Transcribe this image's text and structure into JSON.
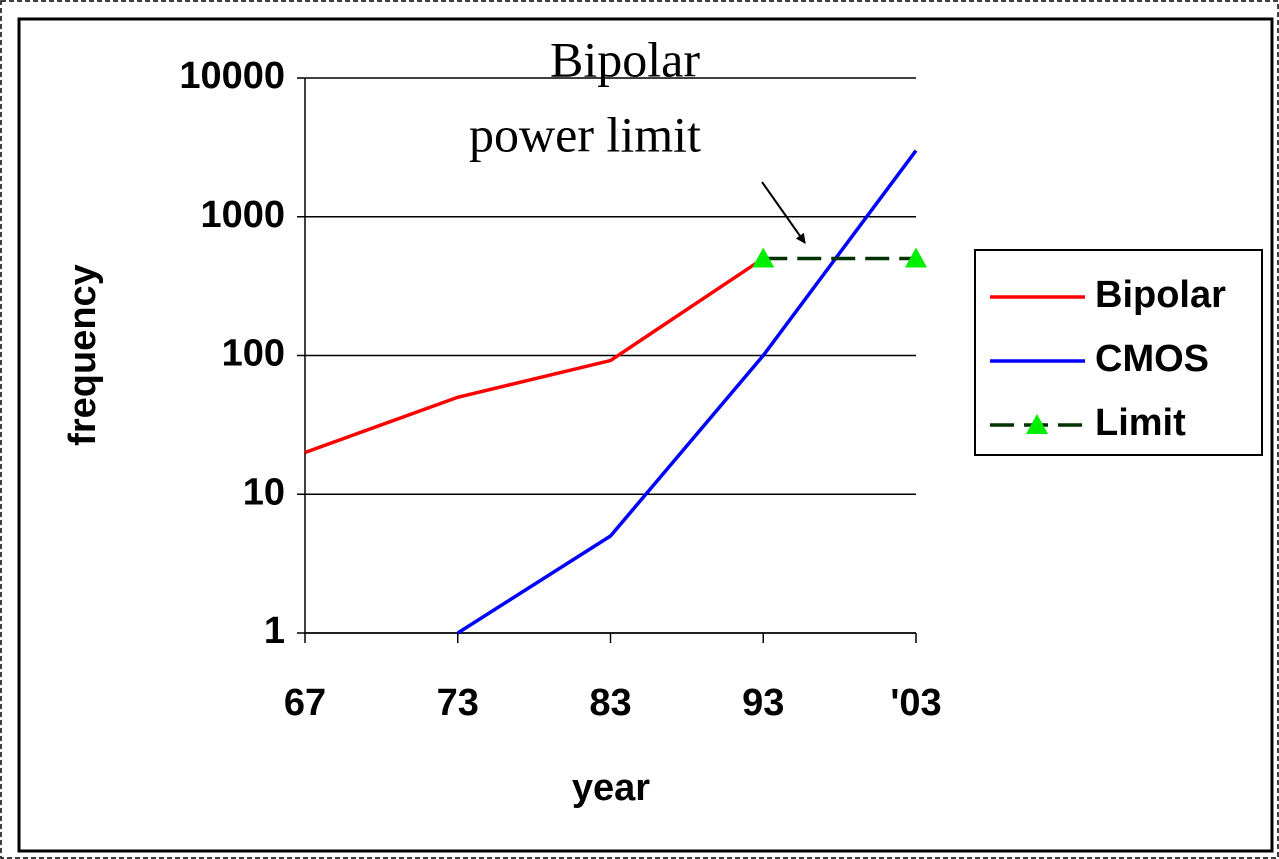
{
  "chart_data": {
    "type": "line",
    "annotation": [
      "Bipolar",
      "power limit"
    ],
    "xlabel": "year",
    "ylabel": "frequency",
    "categories": [
      "67",
      "73",
      "83",
      "93",
      "'03"
    ],
    "series": [
      {
        "name": "Bipolar",
        "color": "#ff0000",
        "values": [
          20,
          50,
          92,
          500,
          null
        ]
      },
      {
        "name": "CMOS",
        "color": "#0000ff",
        "values": [
          null,
          1,
          5,
          100,
          3000
        ]
      },
      {
        "name": "Limit",
        "color": "#003300",
        "dashed": true,
        "marker": "triangle",
        "marker_color": "#00ee00",
        "values": [
          null,
          null,
          null,
          500,
          500
        ]
      }
    ],
    "log_scale": true,
    "ylim": [
      1,
      10000
    ],
    "yticks": [
      1,
      10,
      100,
      1000,
      10000
    ],
    "grid": true,
    "legend": "right"
  }
}
